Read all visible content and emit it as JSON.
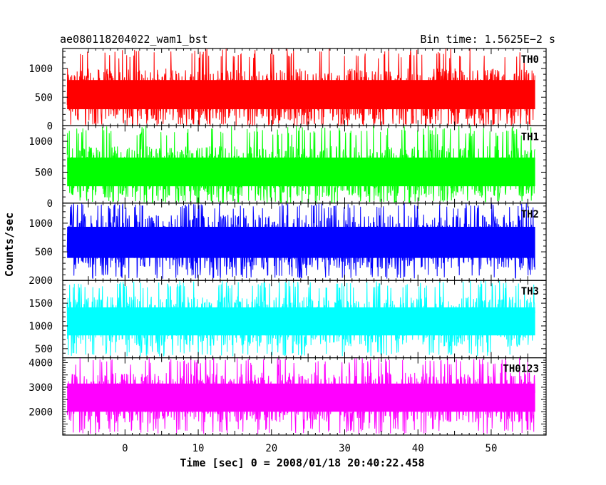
{
  "chart_data": {
    "type": "line",
    "title_left": "ae080118204022_wam1_bst",
    "title_right": "Bin time: 1.5625E−2 s",
    "xlabel": "Time [sec] 0 = 2008/01/18 20:40:22.458",
    "ylabel": "Counts/sec",
    "xlim": [
      -8.5,
      57.5
    ],
    "x_data_range": [
      -7.9,
      56.0
    ],
    "x_ticks": [
      0,
      10,
      20,
      30,
      40,
      50
    ],
    "x_tick_labels": [
      "0",
      "10",
      "20",
      "30",
      "40",
      "50"
    ],
    "panels": [
      {
        "name": "TH0",
        "color": "#ff0000",
        "ylim": [
          0,
          1350
        ],
        "y_ticks": [
          0,
          500,
          1000
        ],
        "y_tick_labels": [
          "0",
          "500",
          "1000"
        ],
        "band_low": 90,
        "band_high": 1000,
        "spike_min": 0,
        "spike_max": 1350
      },
      {
        "name": "TH1",
        "color": "#00ff00",
        "ylim": [
          0,
          1250
        ],
        "y_ticks": [
          0,
          500,
          1000
        ],
        "y_tick_labels": [
          "0",
          "500",
          "1000"
        ],
        "band_low": 90,
        "band_high": 920,
        "spike_min": 0,
        "spike_max": 1250
      },
      {
        "name": "TH2",
        "color": "#0000ff",
        "ylim": [
          0,
          1350
        ],
        "y_ticks": [
          500,
          1000
        ],
        "y_tick_labels": [
          "500",
          "1000"
        ],
        "band_low": 180,
        "band_high": 1150,
        "spike_min": 30,
        "spike_max": 1350
      },
      {
        "name": "TH3",
        "color": "#00ffff",
        "ylim": [
          300,
          2000
        ],
        "y_ticks": [
          500,
          1000,
          1500,
          2000
        ],
        "y_tick_labels": [
          "500",
          "1000",
          "1500",
          "2000"
        ],
        "band_low": 550,
        "band_high": 1650,
        "spike_min": 330,
        "spike_max": 2000
      },
      {
        "name": "TH0123",
        "color": "#ff00ff",
        "ylim": [
          1050,
          4200
        ],
        "y_ticks": [
          2000,
          3000,
          4000
        ],
        "y_tick_labels": [
          "2000",
          "3000",
          "4000"
        ],
        "band_low": 1550,
        "band_high": 3600,
        "spike_min": 1100,
        "spike_max": 4200
      }
    ],
    "grid": false,
    "legend": "none"
  }
}
